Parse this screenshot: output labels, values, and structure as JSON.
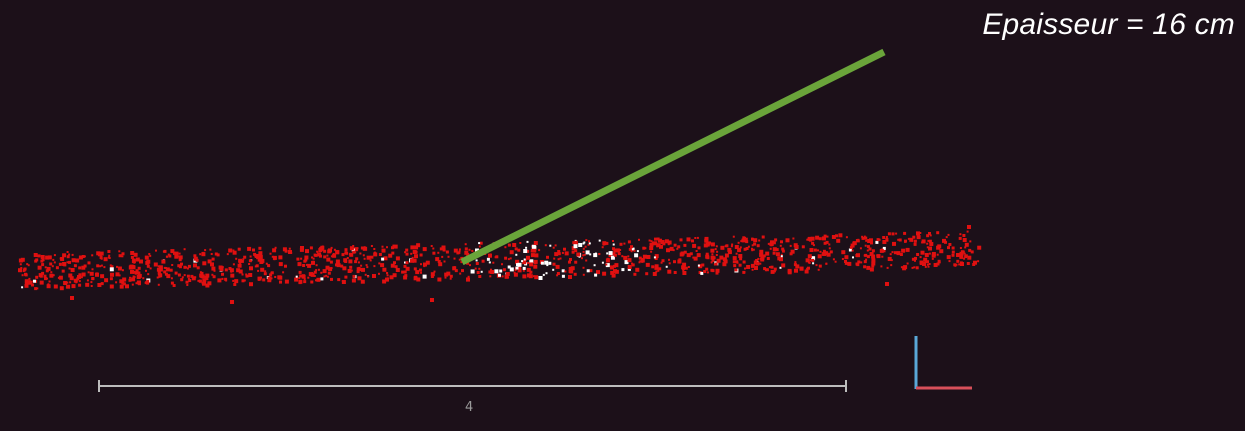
{
  "annotation": {
    "text": "Epaisseur = 16 cm"
  },
  "scale_bar": {
    "label": "4"
  },
  "colors": {
    "background": "#1c1019",
    "points": "#e01010",
    "points_highlight": "#ffffff",
    "leader_line": "#6aa43a",
    "scale_bar": "#bdbdbd",
    "axis_vertical": "#5aa8d8",
    "axis_horizontal": "#d8505a"
  }
}
